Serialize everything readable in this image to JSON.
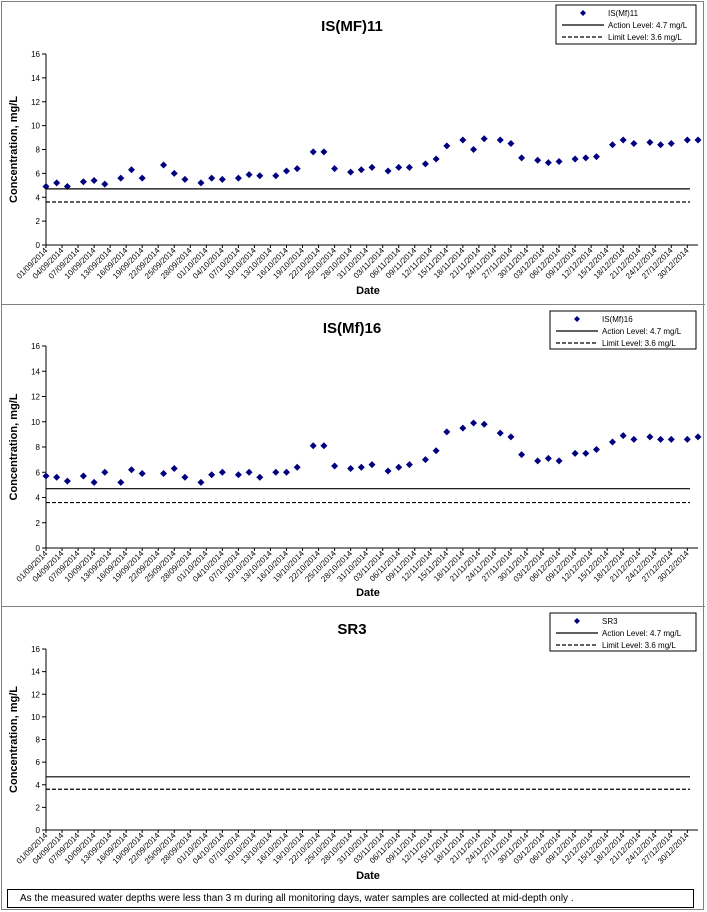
{
  "note": "As the measured water depths were less than 3 m during all monitoring days, water samples are collected  at mid-depth only .",
  "chart_data": [
    {
      "type": "scatter",
      "title": "IS(MF)11",
      "xlabel": "Date",
      "ylabel": "Concentration, mg/L",
      "ylim": [
        0,
        16
      ],
      "yticks": [
        "0",
        "2",
        "4",
        "6",
        "8",
        "10",
        "12",
        "14",
        "16"
      ],
      "legend_position": "top-right",
      "x_tick_labels": [
        "01/09/2014",
        "04/09/2014",
        "07/09/2014",
        "10/09/2014",
        "13/09/2014",
        "16/09/2014",
        "19/09/2014",
        "22/09/2014",
        "25/09/2014",
        "28/09/2014",
        "01/10/2014",
        "04/10/2014",
        "07/10/2014",
        "10/10/2014",
        "13/10/2014",
        "16/10/2014",
        "19/10/2014",
        "22/10/2014",
        "25/10/2014",
        "28/10/2014",
        "31/10/2014",
        "03/11/2014",
        "06/11/2014",
        "09/11/2014",
        "12/11/2014",
        "15/11/2014",
        "18/11/2014",
        "21/11/2014",
        "24/11/2014",
        "27/11/2014",
        "30/11/2014",
        "03/12/2014",
        "06/12/2014",
        "09/12/2014",
        "12/12/2014",
        "15/12/2014",
        "18/12/2014",
        "21/12/2014",
        "24/12/2014",
        "27/12/2014",
        "30/12/2014"
      ],
      "series": [
        {
          "name": "IS(Mf)11",
          "color": "#000080",
          "points": [
            [
              "01/09/2014",
              4.9
            ],
            [
              "03/09/2014",
              5.2
            ],
            [
              "05/09/2014",
              4.9
            ],
            [
              "08/09/2014",
              5.3
            ],
            [
              "10/09/2014",
              5.4
            ],
            [
              "12/09/2014",
              5.1
            ],
            [
              "15/09/2014",
              5.6
            ],
            [
              "17/09/2014",
              6.3
            ],
            [
              "19/09/2014",
              5.6
            ],
            [
              "23/09/2014",
              6.7
            ],
            [
              "25/09/2014",
              6.0
            ],
            [
              "27/09/2014",
              5.5
            ],
            [
              "30/09/2014",
              5.2
            ],
            [
              "02/10/2014",
              5.6
            ],
            [
              "04/10/2014",
              5.5
            ],
            [
              "07/10/2014",
              5.6
            ],
            [
              "09/10/2014",
              5.9
            ],
            [
              "11/10/2014",
              5.8
            ],
            [
              "14/10/2014",
              5.8
            ],
            [
              "16/10/2014",
              6.2
            ],
            [
              "18/10/2014",
              6.4
            ],
            [
              "21/10/2014",
              7.8
            ],
            [
              "23/10/2014",
              7.8
            ],
            [
              "25/10/2014",
              6.4
            ],
            [
              "28/10/2014",
              6.1
            ],
            [
              "30/10/2014",
              6.3
            ],
            [
              "01/11/2014",
              6.5
            ],
            [
              "04/11/2014",
              6.2
            ],
            [
              "06/11/2014",
              6.5
            ],
            [
              "08/11/2014",
              6.5
            ],
            [
              "11/11/2014",
              6.8
            ],
            [
              "13/11/2014",
              7.2
            ],
            [
              "15/11/2014",
              8.3
            ],
            [
              "18/11/2014",
              8.8
            ],
            [
              "20/11/2014",
              8.0
            ],
            [
              "22/11/2014",
              8.9
            ],
            [
              "25/11/2014",
              8.8
            ],
            [
              "27/11/2014",
              8.5
            ],
            [
              "29/11/2014",
              7.3
            ],
            [
              "02/12/2014",
              7.1
            ],
            [
              "04/12/2014",
              6.9
            ],
            [
              "06/12/2014",
              7.0
            ],
            [
              "09/12/2014",
              7.2
            ],
            [
              "11/12/2014",
              7.3
            ],
            [
              "13/12/2014",
              7.4
            ],
            [
              "16/12/2014",
              8.4
            ],
            [
              "18/12/2014",
              8.8
            ],
            [
              "20/12/2014",
              8.5
            ],
            [
              "23/12/2014",
              8.6
            ],
            [
              "25/12/2014",
              8.4
            ],
            [
              "27/12/2014",
              8.5
            ],
            [
              "30/12/2014",
              8.8
            ],
            [
              "01/01/2015",
              8.8
            ]
          ]
        },
        {
          "name": "Action Level: 4.7 mg/L",
          "style": "solid",
          "value": 4.7
        },
        {
          "name": "Limit Level: 3.6 mg/L",
          "style": "dashed",
          "value": 3.6
        }
      ]
    },
    {
      "type": "scatter",
      "title": "IS(Mf)16",
      "xlabel": "Date",
      "ylabel": "Concentration, mg/L",
      "ylim": [
        0,
        16
      ],
      "yticks": [
        "0",
        "2",
        "4",
        "6",
        "8",
        "10",
        "12",
        "14",
        "16"
      ],
      "legend_position": "top-right",
      "x_tick_labels": [
        "01/09/2014",
        "04/09/2014",
        "07/09/2014",
        "10/09/2014",
        "13/09/2014",
        "16/09/2014",
        "19/09/2014",
        "22/09/2014",
        "25/09/2014",
        "28/09/2014",
        "01/10/2014",
        "04/10/2014",
        "07/10/2014",
        "10/10/2014",
        "13/10/2014",
        "16/10/2014",
        "19/10/2014",
        "22/10/2014",
        "25/10/2014",
        "28/10/2014",
        "31/10/2014",
        "03/11/2014",
        "06/11/2014",
        "09/11/2014",
        "12/11/2014",
        "15/11/2014",
        "18/11/2014",
        "21/11/2014",
        "24/11/2014",
        "27/11/2014",
        "30/11/2014",
        "03/12/2014",
        "06/12/2014",
        "09/12/2014",
        "12/12/2014",
        "15/12/2014",
        "18/12/2014",
        "21/12/2014",
        "24/12/2014",
        "27/12/2014",
        "30/12/2014"
      ],
      "series": [
        {
          "name": "IS(Mf)16",
          "color": "#000080",
          "points": [
            [
              "01/09/2014",
              5.7
            ],
            [
              "03/09/2014",
              5.6
            ],
            [
              "05/09/2014",
              5.3
            ],
            [
              "08/09/2014",
              5.7
            ],
            [
              "10/09/2014",
              5.2
            ],
            [
              "12/09/2014",
              6.0
            ],
            [
              "15/09/2014",
              5.2
            ],
            [
              "17/09/2014",
              6.2
            ],
            [
              "19/09/2014",
              5.9
            ],
            [
              "23/09/2014",
              5.9
            ],
            [
              "25/09/2014",
              6.3
            ],
            [
              "27/09/2014",
              5.6
            ],
            [
              "30/09/2014",
              5.2
            ],
            [
              "02/10/2014",
              5.8
            ],
            [
              "04/10/2014",
              6.0
            ],
            [
              "07/10/2014",
              5.8
            ],
            [
              "09/10/2014",
              6.0
            ],
            [
              "11/10/2014",
              5.6
            ],
            [
              "14/10/2014",
              6.0
            ],
            [
              "16/10/2014",
              6.0
            ],
            [
              "18/10/2014",
              6.4
            ],
            [
              "21/10/2014",
              8.1
            ],
            [
              "23/10/2014",
              8.1
            ],
            [
              "25/10/2014",
              6.5
            ],
            [
              "28/10/2014",
              6.3
            ],
            [
              "30/10/2014",
              6.4
            ],
            [
              "01/11/2014",
              6.6
            ],
            [
              "04/11/2014",
              6.1
            ],
            [
              "06/11/2014",
              6.4
            ],
            [
              "08/11/2014",
              6.6
            ],
            [
              "11/11/2014",
              7.0
            ],
            [
              "13/11/2014",
              7.7
            ],
            [
              "15/11/2014",
              9.2
            ],
            [
              "18/11/2014",
              9.5
            ],
            [
              "20/11/2014",
              9.9
            ],
            [
              "22/11/2014",
              9.8
            ],
            [
              "25/11/2014",
              9.1
            ],
            [
              "27/11/2014",
              8.8
            ],
            [
              "29/11/2014",
              7.4
            ],
            [
              "02/12/2014",
              6.9
            ],
            [
              "04/12/2014",
              7.1
            ],
            [
              "06/12/2014",
              6.9
            ],
            [
              "09/12/2014",
              7.5
            ],
            [
              "11/12/2014",
              7.5
            ],
            [
              "13/12/2014",
              7.8
            ],
            [
              "16/12/2014",
              8.4
            ],
            [
              "18/12/2014",
              8.9
            ],
            [
              "20/12/2014",
              8.6
            ],
            [
              "23/12/2014",
              8.8
            ],
            [
              "25/12/2014",
              8.6
            ],
            [
              "27/12/2014",
              8.6
            ],
            [
              "30/12/2014",
              8.6
            ],
            [
              "01/01/2015",
              8.8
            ]
          ]
        },
        {
          "name": "Action Level: 4.7 mg/L",
          "style": "solid",
          "value": 4.7
        },
        {
          "name": "Limit Level: 3.6 mg/L",
          "style": "dashed",
          "value": 3.6
        }
      ]
    },
    {
      "type": "scatter",
      "title": "SR3",
      "xlabel": "Date",
      "ylabel": "Concentration, mg/L",
      "ylim": [
        0,
        16
      ],
      "yticks": [
        "0",
        "2",
        "4",
        "6",
        "8",
        "10",
        "12",
        "14",
        "16"
      ],
      "legend_position": "top-right",
      "x_tick_labels": [
        "01/09/2014",
        "04/09/2014",
        "07/09/2014",
        "10/09/2014",
        "13/09/2014",
        "16/09/2014",
        "19/09/2014",
        "22/09/2014",
        "25/09/2014",
        "28/09/2014",
        "01/10/2014",
        "04/10/2014",
        "07/10/2014",
        "10/10/2014",
        "13/10/2014",
        "16/10/2014",
        "19/10/2014",
        "22/10/2014",
        "25/10/2014",
        "28/10/2014",
        "31/10/2014",
        "03/11/2014",
        "06/11/2014",
        "09/11/2014",
        "12/11/2014",
        "15/11/2014",
        "18/11/2014",
        "21/11/2014",
        "24/11/2014",
        "27/11/2014",
        "30/11/2014",
        "03/12/2014",
        "06/12/2014",
        "09/12/2014",
        "12/12/2014",
        "15/12/2014",
        "18/12/2014",
        "21/12/2014",
        "24/12/2014",
        "27/12/2014",
        "30/12/2014"
      ],
      "series": [
        {
          "name": "SR3",
          "color": "#000080",
          "points": []
        },
        {
          "name": "Action Level: 4.7 mg/L",
          "style": "solid",
          "value": 4.7
        },
        {
          "name": "Limit Level: 3.6 mg/L",
          "style": "dashed",
          "value": 3.6
        }
      ]
    }
  ]
}
